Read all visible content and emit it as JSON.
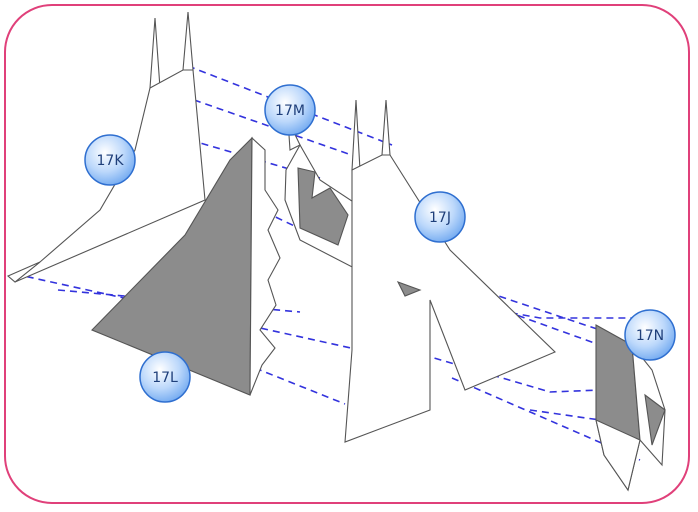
{
  "labels": {
    "k": "17K",
    "m": "17M",
    "j": "17J",
    "l": "17L",
    "n": "17N"
  },
  "colors": {
    "frame": "#e0407a",
    "dashed_lines": "#3333dd",
    "shaded_face": "#8c8c8c",
    "outline": "#555555",
    "badge_fill": "#6fa8f0",
    "badge_edge": "#2f6fd0"
  }
}
